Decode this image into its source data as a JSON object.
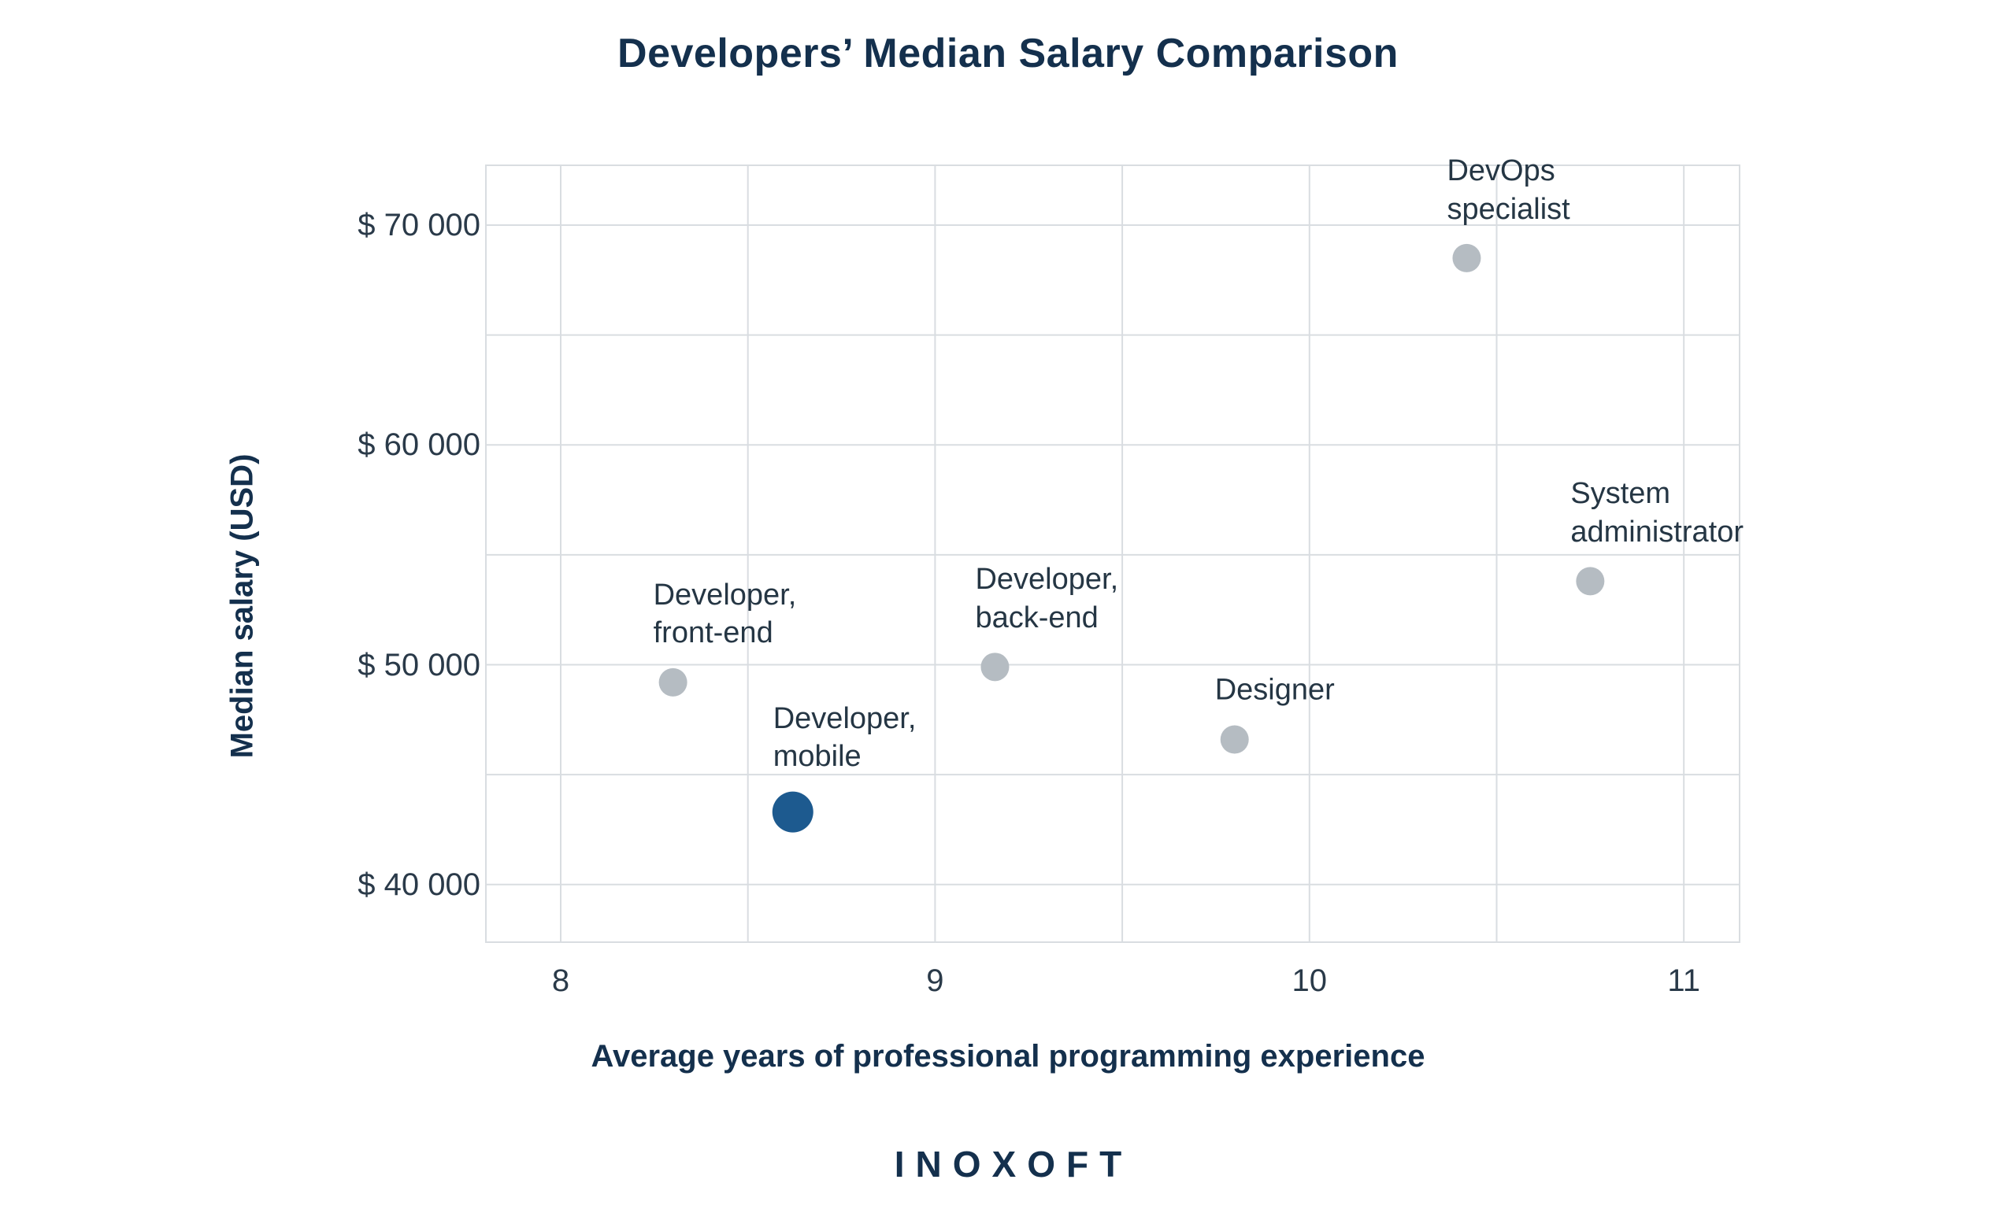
{
  "chart": {
    "title": "Developers’ Median Salary Comparison",
    "xlabel": "Average years of professional programming experience",
    "ylabel": "Median salary (USD)"
  },
  "footer": {
    "brand": "INOXOFT"
  },
  "colors": {
    "dot": "#b5bcc2",
    "dot_highlight": "#1d5a8f",
    "grid": "#d9dde1",
    "title_text": "#14304d",
    "label_text": "#253644"
  },
  "chart_data": {
    "type": "scatter",
    "title": "Developers’ Median Salary Comparison",
    "xlabel": "Average years of professional programming experience",
    "ylabel": "Median salary (USD)",
    "xlim": [
      7.78,
      11.15
    ],
    "ylim": [
      37400,
      72700
    ],
    "grid": true,
    "legend": false,
    "x_gridlines": [
      8,
      8.5,
      9,
      9.5,
      10,
      10.5,
      11
    ],
    "y_gridlines": [
      40000,
      45000,
      50000,
      55000,
      60000,
      65000,
      70000
    ],
    "x_ticks": [
      {
        "value": 8,
        "label": "8"
      },
      {
        "value": 9,
        "label": "9"
      },
      {
        "value": 10,
        "label": "10"
      },
      {
        "value": 11,
        "label": "11"
      }
    ],
    "y_ticks": [
      {
        "value": 40000,
        "label": "$ 40 000"
      },
      {
        "value": 50000,
        "label": "$ 50 000"
      },
      {
        "value": 60000,
        "label": "$ 60 000"
      },
      {
        "value": 70000,
        "label": "$ 70 000"
      }
    ],
    "points": [
      {
        "label": "Developer,\nfront-end",
        "x": 8.3,
        "y": 49200,
        "highlighted": false
      },
      {
        "label": "Developer,\nmobile",
        "x": 8.62,
        "y": 43300,
        "highlighted": true
      },
      {
        "label": "Developer,\nback-end",
        "x": 9.16,
        "y": 49900,
        "highlighted": false
      },
      {
        "label": "Designer",
        "x": 9.8,
        "y": 46600,
        "highlighted": false
      },
      {
        "label": "DevOps\nspecialist",
        "x": 10.42,
        "y": 68500,
        "highlighted": false
      },
      {
        "label": "System\nadministrator",
        "x": 10.75,
        "y": 53800,
        "highlighted": false
      }
    ]
  }
}
